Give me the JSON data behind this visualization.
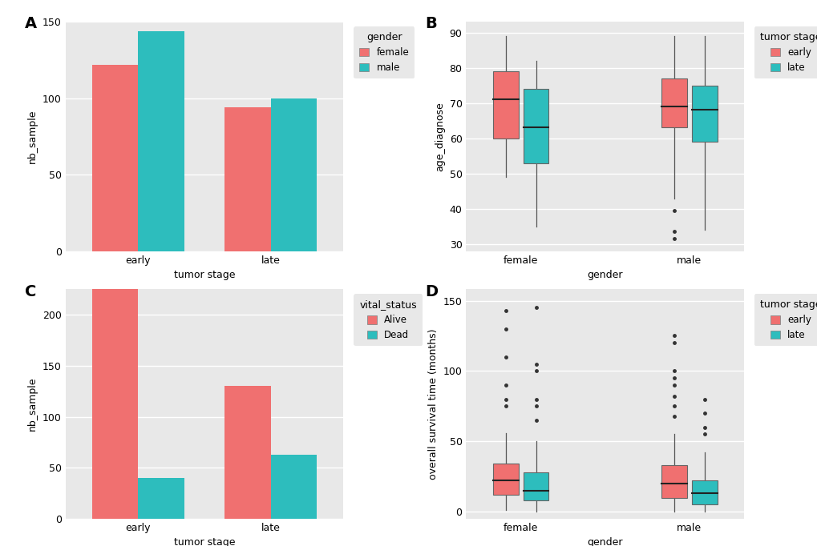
{
  "background_color": "#E8E8E8",
  "plot_bg": "#E8E8E8",
  "outer_bg": "#FFFFFF",
  "female_color": "#F07070",
  "male_color": "#2DBDBD",
  "early_color": "#F07070",
  "late_color": "#2DBDBD",
  "alive_color": "#F07070",
  "dead_color": "#2DBDBD",
  "A_early_female": 122,
  "A_early_male": 144,
  "A_late_female": 94,
  "A_late_male": 100,
  "A_ylabel": "nb_sample",
  "A_xlabel": "tumor stage",
  "A_legend_title": "gender",
  "A_legend_labels": [
    "female",
    "male"
  ],
  "C_early_alive": 225,
  "C_early_dead": 40,
  "C_late_alive": 130,
  "C_late_dead": 63,
  "C_ylabel": "nb_sample",
  "C_xlabel": "tumor stage",
  "C_legend_title": "vital_status",
  "C_legend_labels": [
    "Alive",
    "Dead"
  ],
  "B_boxes": {
    "female_early": {
      "q1": 60,
      "median": 71,
      "q3": 79,
      "whisker_low": 49,
      "whisker_high": 89,
      "outliers": []
    },
    "female_late": {
      "q1": 53,
      "median": 63,
      "q3": 74,
      "whisker_low": 35,
      "whisker_high": 82,
      "outliers": []
    },
    "male_early": {
      "q1": 63,
      "median": 69,
      "q3": 77,
      "whisker_low": 43,
      "whisker_high": 89,
      "outliers": [
        39.5,
        33.5,
        31.5
      ]
    },
    "male_late": {
      "q1": 59,
      "median": 68,
      "q3": 75,
      "whisker_low": 34,
      "whisker_high": 89,
      "outliers": []
    }
  },
  "B_ylim": [
    28,
    93
  ],
  "B_yticks": [
    30,
    40,
    50,
    60,
    70,
    80,
    90
  ],
  "B_ylabel": "age_diagnose",
  "B_xlabel": "gender",
  "B_legend_title": "tumor stage",
  "B_legend_labels": [
    "early",
    "late"
  ],
  "D_boxes": {
    "female_early": {
      "q1": 12,
      "median": 22,
      "q3": 34,
      "whisker_low": 1,
      "whisker_high": 56,
      "outliers": [
        75,
        80,
        90,
        110,
        130,
        143
      ]
    },
    "female_late": {
      "q1": 8,
      "median": 15,
      "q3": 28,
      "whisker_low": 0,
      "whisker_high": 50,
      "outliers": [
        65,
        75,
        80,
        100,
        105,
        145
      ]
    },
    "male_early": {
      "q1": 10,
      "median": 20,
      "q3": 33,
      "whisker_low": 0,
      "whisker_high": 55,
      "outliers": [
        68,
        75,
        82,
        90,
        95,
        100,
        120,
        125
      ]
    },
    "male_late": {
      "q1": 5,
      "median": 13,
      "q3": 22,
      "whisker_low": 0,
      "whisker_high": 42,
      "outliers": [
        55,
        60,
        70,
        80
      ]
    }
  },
  "D_ylim": [
    -5,
    158
  ],
  "D_yticks": [
    0,
    50,
    100,
    150
  ],
  "D_ylabel": "overall survival time (months)",
  "D_xlabel": "gender",
  "D_legend_title": "tumor stage",
  "D_legend_labels": [
    "early",
    "late"
  ]
}
